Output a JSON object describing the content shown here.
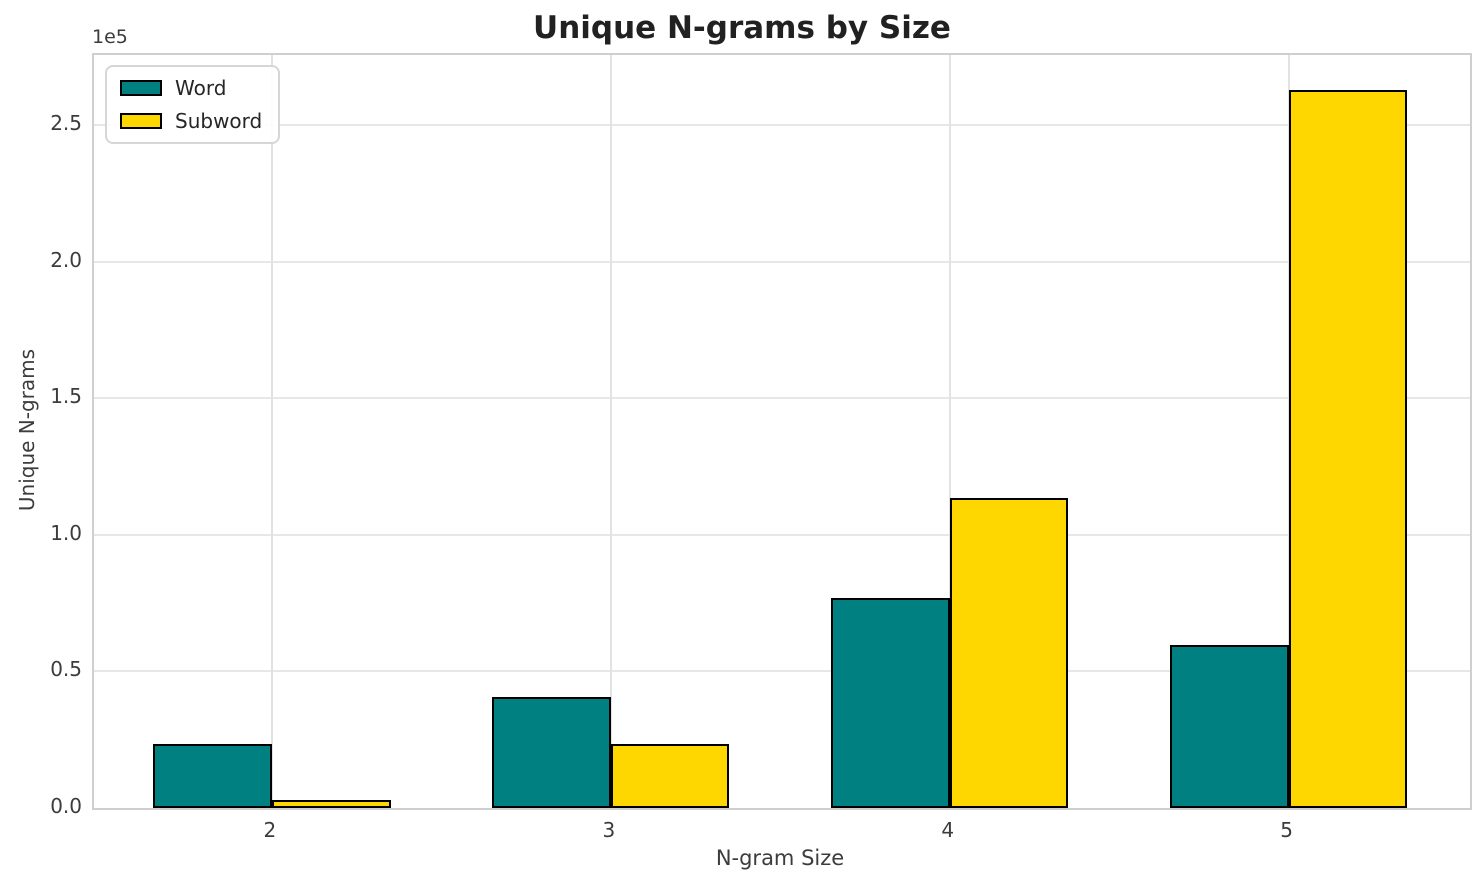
{
  "chart_data": {
    "type": "bar",
    "title": "Unique N-grams by Size",
    "xlabel": "N-gram Size",
    "ylabel": "Unique N-grams",
    "y_offset_label": "1e5",
    "categories": [
      "2",
      "3",
      "4",
      "5"
    ],
    "series": [
      {
        "name": "Word",
        "color": "#008080",
        "values": [
          23400,
          40800,
          77000,
          59500
        ]
      },
      {
        "name": "Subword",
        "color": "#FFD700",
        "values": [
          2900,
          23400,
          113600,
          262700
        ]
      }
    ],
    "bar_edge_color": "#000000",
    "bar_width_units": 0.35,
    "xlim": [
      -0.525,
      3.535
    ],
    "ylim": [
      0,
      275600
    ],
    "yticks": [
      0,
      50000,
      100000,
      150000,
      200000,
      250000
    ],
    "ytick_labels": [
      "0.0",
      "0.5",
      "1.0",
      "1.5",
      "2.0",
      "2.5"
    ],
    "grid": true,
    "legend_position": "upper left"
  }
}
